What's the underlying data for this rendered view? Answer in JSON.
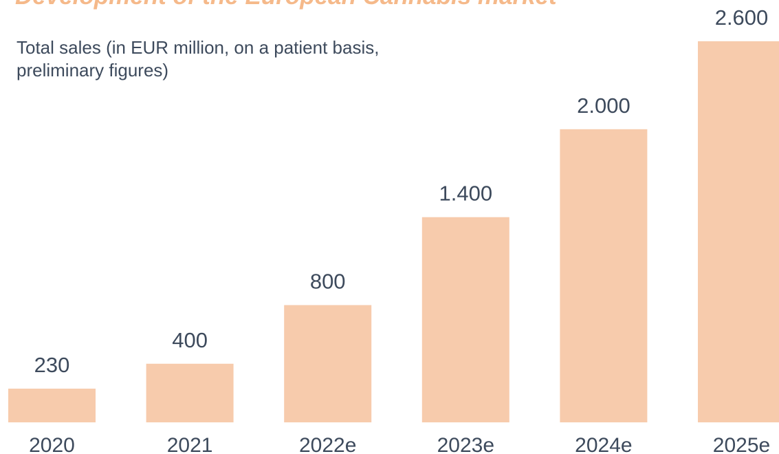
{
  "chart_data": {
    "type": "bar",
    "title": "Development of the European Cannabis market",
    "subtitle": [
      "Total sales (in EUR million, on a patient basis,",
      "preliminary figures)"
    ],
    "categories": [
      "2020",
      "2021",
      "2022e",
      "2023e",
      "2024e",
      "2025e"
    ],
    "values": [
      230,
      400,
      800,
      1400,
      2000,
      2600
    ],
    "value_labels": [
      "230",
      "400",
      "800",
      "1.400",
      "2.000",
      "2.600"
    ],
    "color": "#f7cbac"
  }
}
